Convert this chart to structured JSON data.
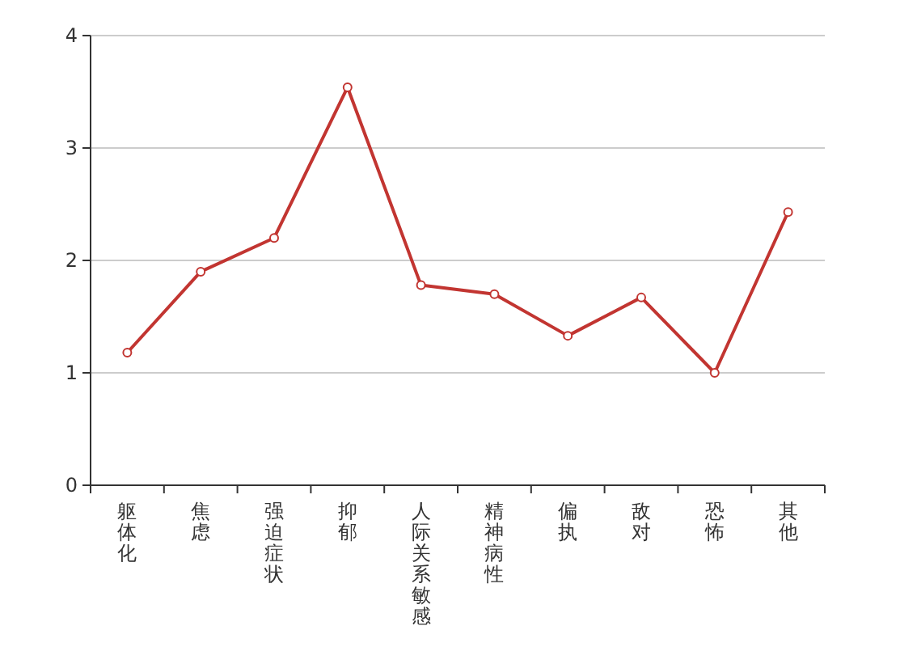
{
  "chart_data": {
    "type": "line",
    "categories": [
      "躯体化",
      "焦虑",
      "强迫症状",
      "抑郁",
      "人际关系敏感",
      "精神病性",
      "偏执",
      "敌对",
      "恐怖",
      "其他"
    ],
    "series": [
      {
        "color": "#c23531",
        "values": [
          1.18,
          1.9,
          2.2,
          3.54,
          1.78,
          1.7,
          1.33,
          1.67,
          1.0,
          2.43
        ]
      }
    ],
    "ylim": [
      0,
      4
    ],
    "yticks": [
      0,
      1,
      2,
      3,
      4
    ],
    "grid": "y",
    "marker": "circle",
    "line_style": "solid"
  }
}
